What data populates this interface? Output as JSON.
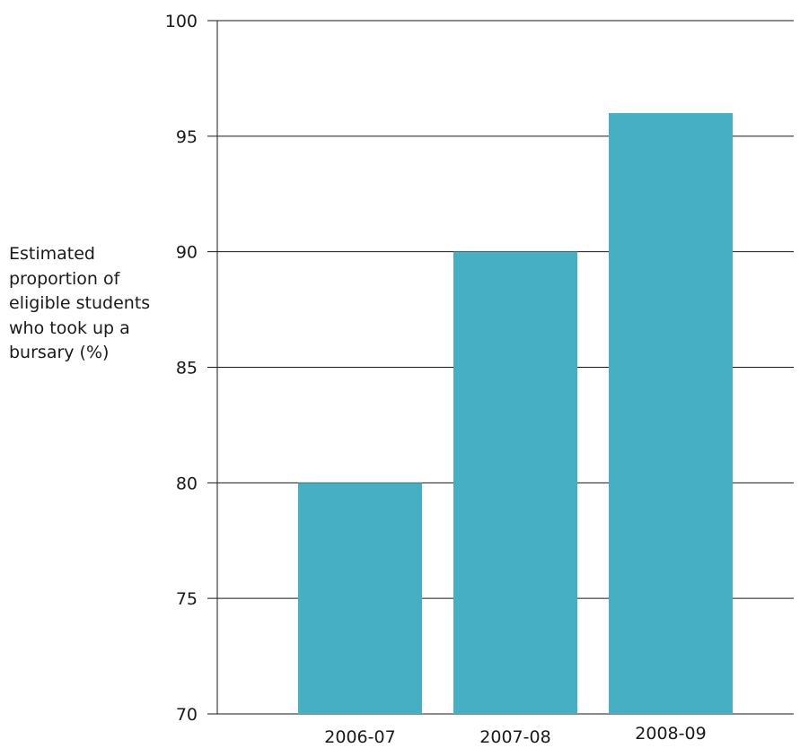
{
  "chart_data": {
    "type": "bar",
    "categories": [
      "2006-07",
      "2007-08",
      "2008-09"
    ],
    "values": [
      80,
      90,
      96
    ],
    "ylabel_lines": [
      "Estimated",
      "proportion of",
      "eligible students",
      "who took up a",
      "bursary (%)"
    ],
    "ylim": [
      70,
      100
    ],
    "yticks": [
      70,
      75,
      80,
      85,
      90,
      95,
      100
    ],
    "grid": true,
    "bar_color": "#47afc4",
    "title": "",
    "xlabel": ""
  }
}
